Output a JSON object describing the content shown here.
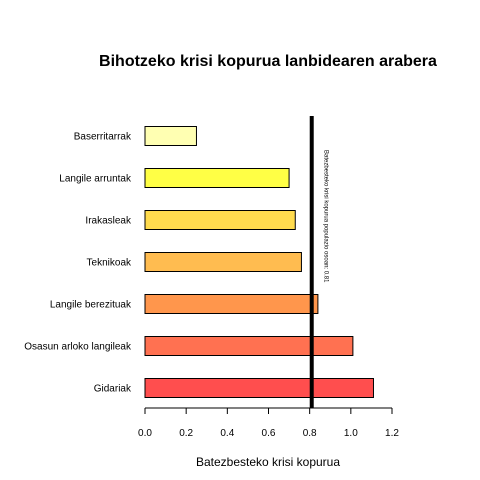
{
  "chart_data": {
    "type": "bar",
    "orientation": "horizontal",
    "title": "Bihotzeko krisi kopurua lanbidearen arabera",
    "xlabel": "Batezbesteko krisi kopurua",
    "ylabel": "",
    "xlim": [
      0,
      1.2
    ],
    "xticks": [
      0.0,
      0.2,
      0.4,
      0.6,
      0.8,
      1.0,
      1.2
    ],
    "xtick_labels": [
      "0.0",
      "0.2",
      "0.4",
      "0.6",
      "0.8",
      "1.0",
      "1.2"
    ],
    "grid": false,
    "categories": [
      "Baserritarrak",
      "Langile arruntak",
      "Irakasleak",
      "Teknikoak",
      "Langile berezituak",
      "Osasun arloko langileak",
      "Gidariak"
    ],
    "values": [
      0.25,
      0.7,
      0.73,
      0.76,
      0.84,
      1.01,
      1.11
    ],
    "colors": [
      "#FFFFB2",
      "#FFFF45",
      "#FFDB4E",
      "#FFBC50",
      "#FF964C",
      "#FF7151",
      "#FF4E4E"
    ],
    "reference_line": {
      "value": 0.81,
      "color": "#000000",
      "label": "Batezbesteko krisi kopurua populazio osoan: 0.81"
    }
  }
}
